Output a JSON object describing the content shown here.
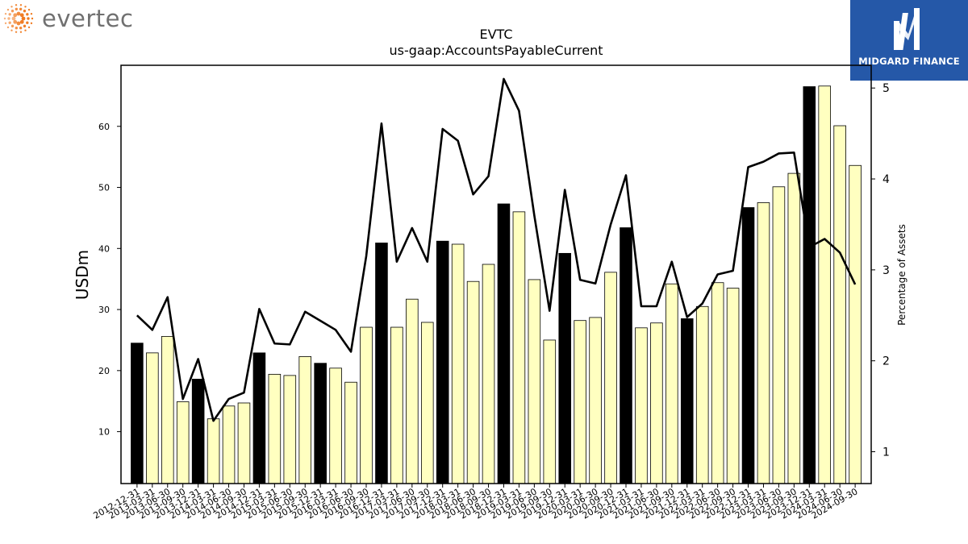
{
  "logos": {
    "left_brand": "evertec",
    "left_accent": "#f07a1f",
    "right_brand": "MIDGARD FINANCE",
    "right_bg": "#2558a8"
  },
  "chart_data": {
    "type": "bar",
    "title": "EVTC",
    "subtitle": "us-gaap:AccountsPayableCurrent",
    "ylabel": "USDm",
    "y2label": "Percentage of Assets",
    "ylim": [
      1.5,
      70.0
    ],
    "y2lim": [
      0.65,
      5.25
    ],
    "yticks": [
      10,
      20,
      30,
      40,
      50,
      60
    ],
    "y2ticks": [
      1,
      2,
      3,
      4,
      5
    ],
    "bar_colors": {
      "year_end": "#000000",
      "quarter": "#ffffc0"
    },
    "line_color": "#000000",
    "categories": [
      "2012-12-31",
      "2013-03-31",
      "2013-06-30",
      "2013-09-30",
      "2013-12-31",
      "2014-03-31",
      "2014-06-30",
      "2014-09-30",
      "2014-12-31",
      "2015-03-31",
      "2015-06-30",
      "2015-09-30",
      "2015-12-31",
      "2016-03-31",
      "2016-06-30",
      "2016-09-30",
      "2016-12-31",
      "2017-03-31",
      "2017-06-30",
      "2017-09-30",
      "2017-12-31",
      "2018-03-31",
      "2018-06-30",
      "2018-09-30",
      "2018-12-31",
      "2019-03-31",
      "2019-06-30",
      "2019-09-30",
      "2019-12-31",
      "2020-03-31",
      "2020-06-30",
      "2020-09-30",
      "2020-12-31",
      "2021-03-31",
      "2021-06-30",
      "2021-09-30",
      "2021-12-31",
      "2022-03-31",
      "2022-06-30",
      "2022-09-30",
      "2022-12-31",
      "2023-03-31",
      "2023-06-30",
      "2023-09-30",
      "2023-12-31",
      "2024-03-31",
      "2024-06-30",
      "2024-09-30"
    ],
    "series": [
      {
        "kind": "bar",
        "values": [
          24.5,
          22.9,
          25.6,
          14.9,
          18.6,
          12.1,
          14.2,
          14.7,
          22.9,
          19.4,
          19.2,
          22.3,
          21.2,
          20.4,
          18.1,
          27.1,
          40.9,
          27.1,
          31.7,
          27.9,
          41.2,
          40.7,
          34.6,
          37.4,
          47.3,
          46.0,
          34.9,
          25.0,
          39.2,
          28.2,
          28.7,
          36.1,
          43.4,
          27.0,
          27.8,
          34.2,
          28.5,
          30.5,
          34.4,
          33.5,
          46.7,
          47.5,
          50.1,
          52.3,
          66.5,
          66.6,
          60.1,
          53.6
        ]
      },
      {
        "kind": "line",
        "axis": "secondary",
        "values": [
          2.5,
          2.34,
          2.7,
          1.58,
          2.02,
          1.34,
          1.58,
          1.65,
          2.57,
          2.19,
          2.18,
          2.54,
          2.44,
          2.34,
          2.1,
          3.15,
          4.61,
          3.09,
          3.46,
          3.09,
          4.55,
          4.42,
          3.83,
          4.03,
          5.1,
          4.75,
          3.6,
          2.55,
          3.88,
          2.89,
          2.85,
          3.5,
          4.04,
          2.6,
          2.6,
          3.09,
          2.48,
          2.63,
          2.95,
          2.99,
          4.13,
          4.19,
          4.28,
          4.29,
          3.25,
          3.34,
          3.19,
          2.84
        ]
      }
    ]
  }
}
